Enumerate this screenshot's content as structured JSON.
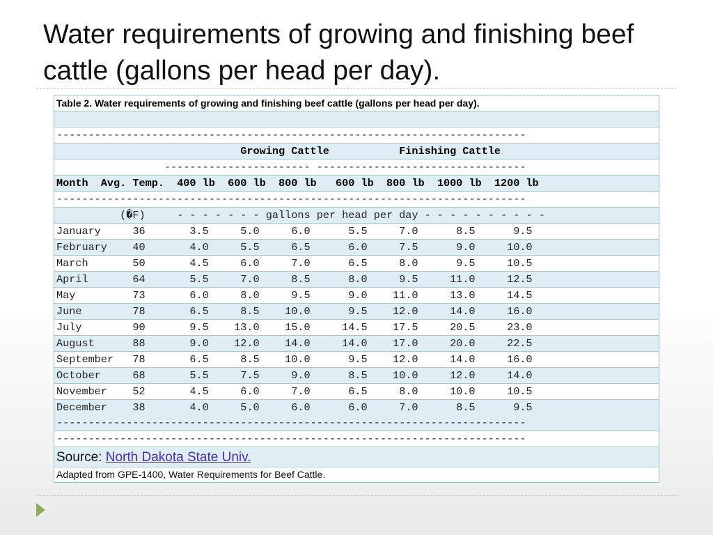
{
  "slide": {
    "title": "Water requirements of growing and finishing beef cattle (gallons per head per day)."
  },
  "table": {
    "caption": "Table 2. Water requirements of growing and finishing beef cattle (gallons per head per day).",
    "rule_line": "--------------------------------------------------------------------------",
    "group_header": "                             Growing Cattle           Finishing Cattle",
    "group_underline": "                 ----------------------- ---------------------------------",
    "column_header": "Month  Avg. Temp.  400 lb  600 lb  800 lb   600 lb  800 lb  1000 lb  1200 lb",
    "units_line": "          (�F)     - - - - - - - gallons per head per day - - - - - - - - - -",
    "rows": [
      {
        "month": "January",
        "temp": "36",
        "g400": "3.5",
        "g600": "5.0",
        "g800": "6.0",
        "f600": "5.5",
        "f800": "7.0",
        "f1000": "8.5",
        "f1200": "9.5"
      },
      {
        "month": "February",
        "temp": "40",
        "g400": "4.0",
        "g600": "5.5",
        "g800": "6.5",
        "f600": "6.0",
        "f800": "7.5",
        "f1000": "9.0",
        "f1200": "10.0"
      },
      {
        "month": "March",
        "temp": "50",
        "g400": "4.5",
        "g600": "6.0",
        "g800": "7.0",
        "f600": "6.5",
        "f800": "8.0",
        "f1000": "9.5",
        "f1200": "10.5"
      },
      {
        "month": "April",
        "temp": "64",
        "g400": "5.5",
        "g600": "7.0",
        "g800": "8.5",
        "f600": "8.0",
        "f800": "9.5",
        "f1000": "11.0",
        "f1200": "12.5"
      },
      {
        "month": "May",
        "temp": "73",
        "g400": "6.0",
        "g600": "8.0",
        "g800": "9.5",
        "f600": "9.0",
        "f800": "11.0",
        "f1000": "13.0",
        "f1200": "14.5"
      },
      {
        "month": "June",
        "temp": "78",
        "g400": "6.5",
        "g600": "8.5",
        "g800": "10.0",
        "f600": "9.5",
        "f800": "12.0",
        "f1000": "14.0",
        "f1200": "16.0"
      },
      {
        "month": "July",
        "temp": "90",
        "g400": "9.5",
        "g600": "13.0",
        "g800": "15.0",
        "f600": "14.5",
        "f800": "17.5",
        "f1000": "20.5",
        "f1200": "23.0"
      },
      {
        "month": "August",
        "temp": "88",
        "g400": "9.0",
        "g600": "12.0",
        "g800": "14.0",
        "f600": "14.0",
        "f800": "17.0",
        "f1000": "20.0",
        "f1200": "22.5"
      },
      {
        "month": "September",
        "temp": "78",
        "g400": "6.5",
        "g600": "8.5",
        "g800": "10.0",
        "f600": "9.5",
        "f800": "12.0",
        "f1000": "14.0",
        "f1200": "16.0"
      },
      {
        "month": "October",
        "temp": "68",
        "g400": "5.5",
        "g600": "7.5",
        "g800": "9.0",
        "f600": "8.5",
        "f800": "10.0",
        "f1000": "12.0",
        "f1200": "14.0"
      },
      {
        "month": "November",
        "temp": "52",
        "g400": "4.5",
        "g600": "6.0",
        "g800": "7.0",
        "f600": "6.5",
        "f800": "8.0",
        "f1000": "10.0",
        "f1200": "10.5"
      },
      {
        "month": "December",
        "temp": "38",
        "g400": "4.0",
        "g600": "5.0",
        "g800": "6.0",
        "f600": "6.0",
        "f800": "7.0",
        "f1000": "8.5",
        "f1200": "9.5"
      }
    ],
    "source_label": "Source: ",
    "source_link": "North Dakota State Univ.",
    "note": "Adapted from GPE-1400, Water Requirements for Beef Cattle."
  },
  "colors": {
    "row_alt": "#dfeef5",
    "grid_line": "#a6c4d3",
    "link": "#4b2ea5",
    "accent_arrow": "#8fab5a"
  },
  "icons": {
    "footer_arrow": "play-triangle-icon"
  }
}
